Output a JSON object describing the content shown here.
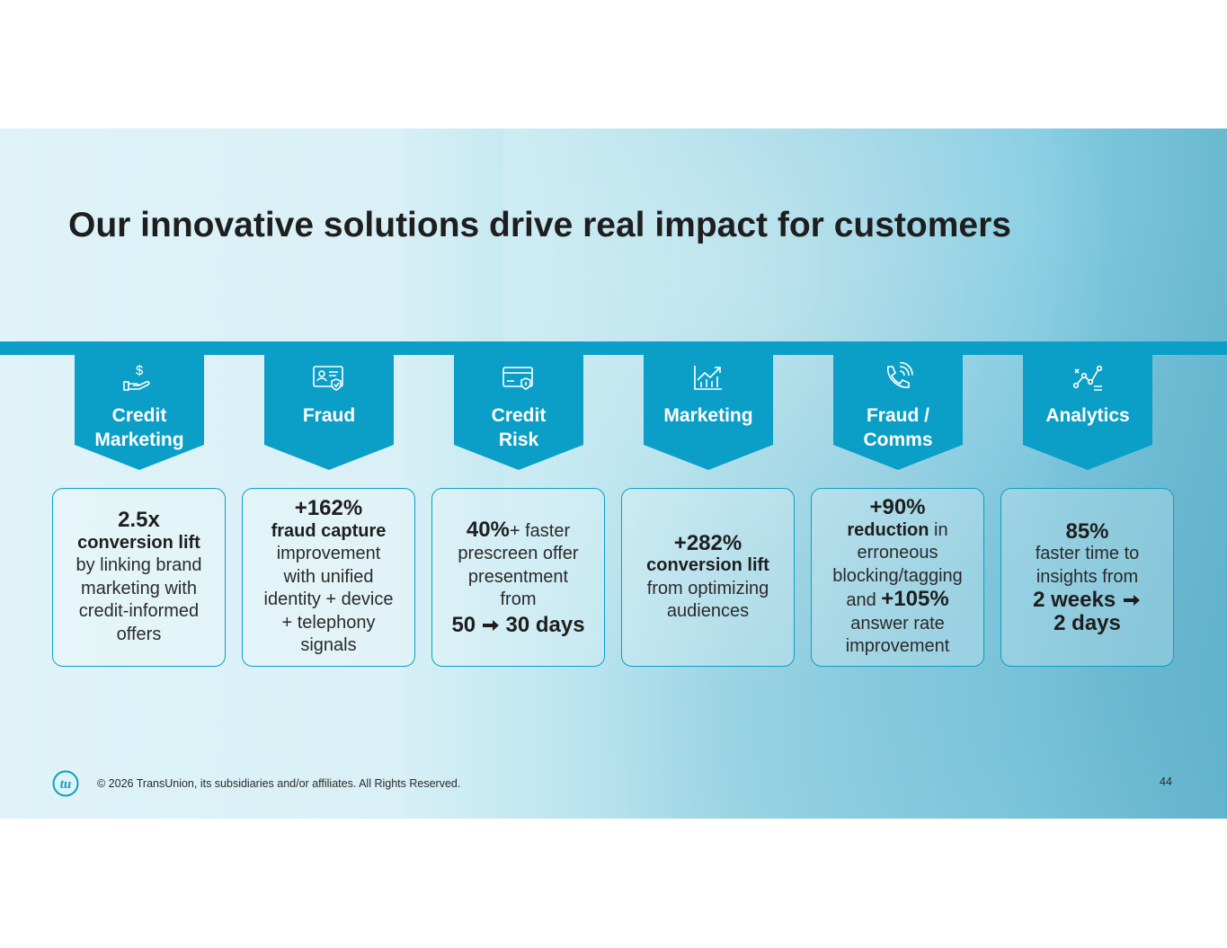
{
  "slide": {
    "title": "Our innovative solutions drive real impact for customers",
    "accent_color": "#0b9fc7",
    "categories": [
      {
        "label_line1": "Credit",
        "label_line2": "Marketing",
        "icon": "hand-dollar-icon"
      },
      {
        "label_line1": "Fraud",
        "label_line2": "",
        "icon": "id-card-shield-icon"
      },
      {
        "label_line1": "Credit",
        "label_line2": "Risk",
        "icon": "credit-card-shield-icon"
      },
      {
        "label_line1": "Marketing",
        "label_line2": "",
        "icon": "growth-chart-icon"
      },
      {
        "label_line1": "Fraud /",
        "label_line2": "Comms",
        "icon": "phone-signal-icon"
      },
      {
        "label_line1": "Analytics",
        "label_line2": "",
        "icon": "analytics-chart-icon"
      }
    ],
    "cards": [
      {
        "headline": "2.5x",
        "bold": "conversion lift",
        "l1": "by linking brand",
        "l2": "marketing with",
        "l3": "credit-informed",
        "l4": "offers"
      },
      {
        "headline": "+162%",
        "bold": "fraud capture",
        "l1": "improvement",
        "l2": "with unified",
        "l3": "identity + device",
        "l4": "+ telephony",
        "l5": "signals"
      },
      {
        "headline": "40%",
        "headline_suffix": "+ faster",
        "l1": "prescreen offer",
        "l2": "presentment",
        "l3": "from",
        "from": "50",
        "to": "30 days"
      },
      {
        "headline": "+282%",
        "bold": "conversion lift",
        "l1": "from optimizing",
        "l2": "audiences"
      },
      {
        "headline": "+90%",
        "bold": "reduction",
        "bold_suffix": " in",
        "l1": "erroneous",
        "l2": "blocking/tagging",
        "l3_prefix": "and ",
        "l3_bold": "+105%",
        "l4": "answer rate",
        "l5": "improvement"
      },
      {
        "headline": "85%",
        "l1": "faster time to",
        "l2": "insights from",
        "from": "2 weeks",
        "to": "2 days"
      }
    ]
  },
  "footer": {
    "logo_text": "tu",
    "copyright": "© 2026 TransUnion, its subsidiaries and/or affiliates. All Rights Reserved.",
    "page_number": "44"
  }
}
